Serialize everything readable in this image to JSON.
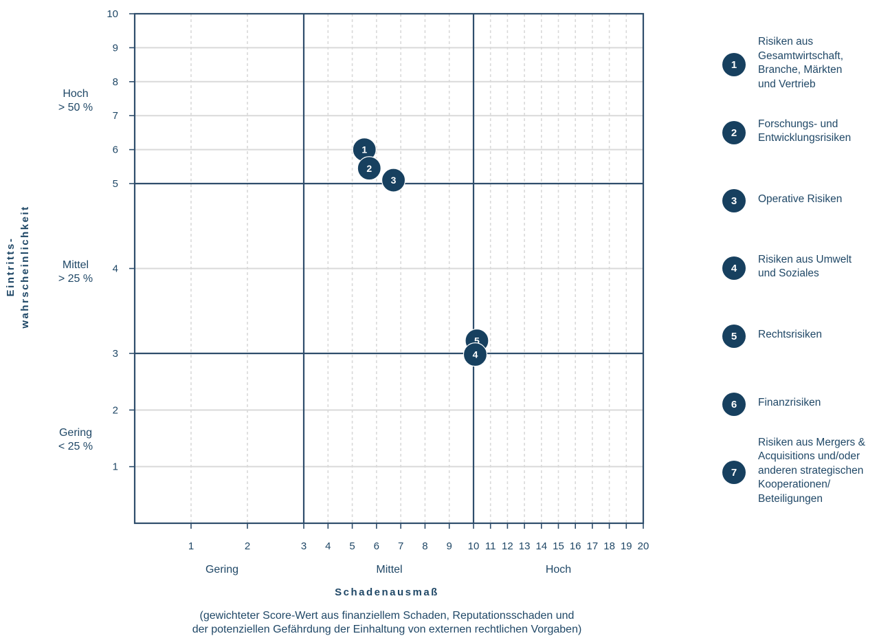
{
  "chart_data": {
    "type": "scatter",
    "xlabel": "Schadenausmaß",
    "x_note": [
      "(gewichteter Score-Wert aus finanziellem Schaden, Reputationsschaden und",
      "der potenziellen Gefährdung der Einhaltung von externen rechtlichen Vorgaben)"
    ],
    "ylabel": [
      "Eintritts-",
      "wahrscheinlichkeit"
    ],
    "x_ticks": [
      "1",
      "2",
      "3",
      "4",
      "5",
      "6",
      "7",
      "8",
      "9",
      "10",
      "11",
      "12",
      "13",
      "14",
      "15",
      "16",
      "17",
      "18",
      "19",
      "20"
    ],
    "y_ticks": [
      "1",
      "2",
      "3",
      "4",
      "5",
      "6",
      "7",
      "8",
      "9",
      "10"
    ],
    "x_bands": [
      "Gering",
      "Mittel",
      "Hoch"
    ],
    "y_bands": [
      {
        "label": "Hoch",
        "sub": "> 50 %"
      },
      {
        "label": "Mittel",
        "sub": "> 25 %"
      },
      {
        "label": "Gering",
        "sub": "< 25 %"
      }
    ],
    "xlim": [
      0,
      20
    ],
    "ylim": [
      0,
      10
    ],
    "points": [
      {
        "id": "1",
        "x": 5.5,
        "y": 6.0
      },
      {
        "id": "2",
        "x": 5.7,
        "y": 5.45
      },
      {
        "id": "3",
        "x": 6.7,
        "y": 5.1
      },
      {
        "id": "5",
        "x": 10.2,
        "y": 3.15
      },
      {
        "id": "4",
        "x": 10.1,
        "y": 2.98
      }
    ],
    "legend": [
      {
        "id": "1",
        "text": "Risiken aus\nGesamtwirtschaft,\nBranche, Märkten\nund Vertrieb"
      },
      {
        "id": "2",
        "text": "Forschungs- und\nEntwicklungsrisiken"
      },
      {
        "id": "3",
        "text": "Operative Risiken"
      },
      {
        "id": "4",
        "text": "Risiken aus Umwelt\nund Soziales"
      },
      {
        "id": "5",
        "text": "Rechtsrisiken"
      },
      {
        "id": "6",
        "text": "Finanzrisiken"
      },
      {
        "id": "7",
        "text": "Risiken aus Mergers &\nAcquisitions und/oder\nanderen strategischen\nKooperationen/\nBeteiligungen"
      }
    ],
    "colors": {
      "frame": "#2e4d6b",
      "grid": "#d9d9d9",
      "bubble": "#17405f",
      "text": "#1f4766"
    }
  }
}
